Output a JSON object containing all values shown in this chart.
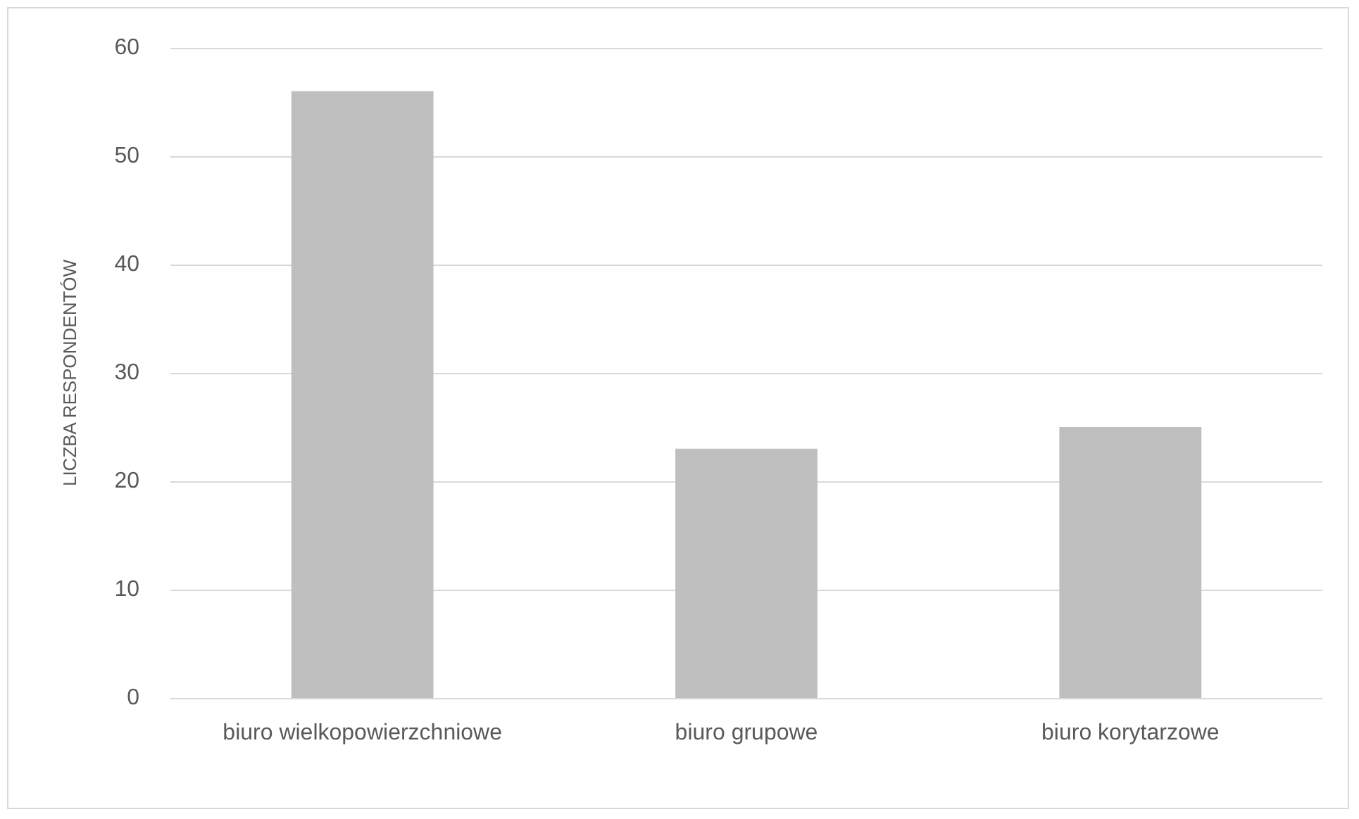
{
  "chart_data": {
    "type": "bar",
    "ylabel": "LICZBA RESPONDENTÓW",
    "categories": [
      "biuro wielkopowierzchniowe",
      "biuro grupowe",
      "biuro korytarzowe"
    ],
    "values": [
      56,
      23,
      25
    ],
    "color": "#bfbfbf",
    "ylim": [
      0,
      60
    ],
    "yticks": [
      0,
      10,
      20,
      30,
      40,
      50,
      60
    ],
    "grid": "y"
  }
}
